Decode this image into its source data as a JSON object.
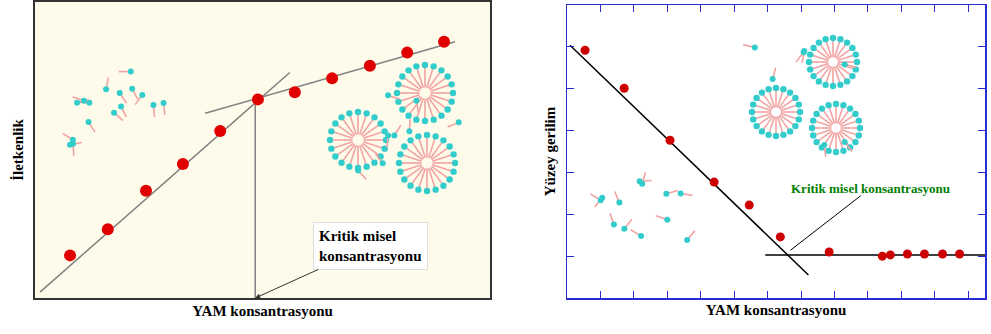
{
  "chart_data": [
    {
      "type": "scatter",
      "x_label": "YAM konsantrasyonu",
      "y_label": "İletkenlik",
      "xlim": [
        0,
        10
      ],
      "ylim": [
        0,
        10
      ],
      "tick_labels": false,
      "grid": false,
      "series": [
        {
          "type": "line",
          "color": "#808080",
          "line_style": "solid",
          "x": [
            0.11,
            5.6
          ],
          "values": [
            0.2,
            7.62
          ]
        },
        {
          "type": "line",
          "color": "#808080",
          "line_style": "solid",
          "x": [
            3.74,
            9.23
          ],
          "values": [
            6.24,
            8.66
          ]
        },
        {
          "type": "line",
          "color": "#808080",
          "line_style": "solid",
          "x": [
            4.84,
            4.84
          ],
          "values": [
            0,
            6.74
          ]
        },
        {
          "type": "scatter",
          "color": "#e00000",
          "marker": "circle",
          "x": [
            0.77,
            1.6,
            2.44,
            3.25,
            4.07,
            4.9,
            5.71,
            6.53,
            7.36,
            8.18,
            8.99
          ],
          "values": [
            1.44,
            2.32,
            3.62,
            4.53,
            5.64,
            6.71,
            6.95,
            7.42,
            7.85,
            8.29,
            8.66
          ]
        }
      ],
      "annotations": [
        {
          "text": "Kritik misel\nkonsantrasyonu",
          "x": 4.84,
          "y": 0,
          "color": "#000000"
        }
      ]
    },
    {
      "type": "scatter",
      "x_label": "YAM konsantrasyonu",
      "y_label": "Yüzey gerilim",
      "xlim": [
        0,
        12.5
      ],
      "ylim": [
        0,
        7
      ],
      "xticks": [
        1,
        2,
        3,
        4,
        5,
        6,
        7,
        8,
        9,
        10,
        11,
        12
      ],
      "yticks": [
        1,
        2,
        3,
        4,
        5,
        6
      ],
      "tick_labels": false,
      "grid": false,
      "series": [
        {
          "type": "line",
          "color": "#000000",
          "line_style": "solid",
          "x": [
            0.09,
            7.22
          ],
          "values": [
            6.04,
            0.55
          ]
        },
        {
          "type": "line",
          "color": "#000000",
          "line_style": "solid",
          "x": [
            5.93,
            12.5
          ],
          "values": [
            1.03,
            1.03
          ]
        },
        {
          "type": "scatter",
          "color": "#cc0000",
          "marker": "circle",
          "x": [
            0.54,
            1.71,
            3.08,
            4.4,
            5.45,
            6.38,
            7.84,
            9.43,
            9.67,
            10.18,
            10.69,
            11.23,
            11.74
          ],
          "values": [
            5.92,
            5.01,
            3.77,
            2.77,
            2.22,
            1.46,
            1.1,
            1.0,
            1.03,
            1.05,
            1.05,
            1.05,
            1.05
          ]
        }
      ],
      "annotations": [
        {
          "text": "Kritik misel konsantrasyonu",
          "x": 6.68,
          "y": 1.14,
          "color": "#008000"
        }
      ]
    }
  ]
}
